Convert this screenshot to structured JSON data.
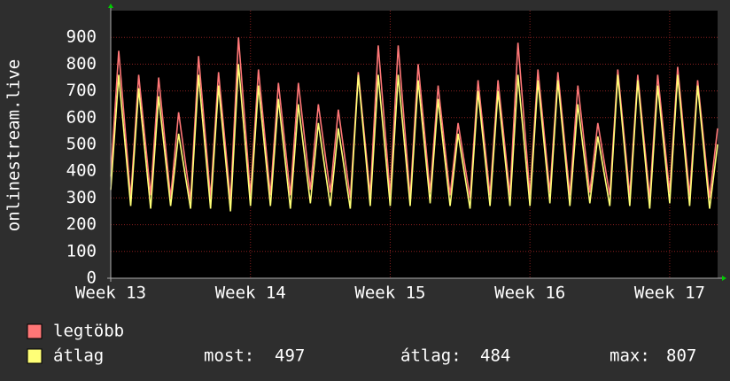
{
  "chart_data": {
    "type": "line",
    "y_label": "onlinestream.live",
    "x": [
      0,
      0.4,
      1,
      1.4,
      2,
      2.4,
      3,
      3.4,
      4,
      4.4,
      5,
      5.4,
      6,
      6.4,
      7,
      7.4,
      8,
      8.4,
      9,
      9.4,
      10,
      10.4,
      11,
      11.4,
      12,
      12.4,
      13,
      13.4,
      14,
      14.4,
      15,
      15.4,
      16,
      16.4,
      17,
      17.4,
      18,
      18.4,
      19,
      19.4,
      20,
      20.4,
      21,
      21.4,
      22,
      22.4,
      23,
      23.4,
      24,
      24.4,
      25,
      25.4,
      26,
      26.4,
      27,
      27.4,
      28,
      28.4,
      29,
      29.4,
      30,
      30.4
    ],
    "xlim": [
      0,
      30.4
    ],
    "xticks": [
      {
        "value": 0,
        "label": "Week 13"
      },
      {
        "value": 7,
        "label": "Week 14"
      },
      {
        "value": 14,
        "label": "Week 15"
      },
      {
        "value": 21,
        "label": "Week 16"
      },
      {
        "value": 28,
        "label": "Week 17"
      }
    ],
    "ylim": [
      0,
      1000
    ],
    "yticks": [
      0,
      100,
      200,
      300,
      400,
      500,
      600,
      700,
      800,
      900
    ],
    "grid": true,
    "series": [
      {
        "name": "legtöbb",
        "color": "#ff7777",
        "values": [
          380,
          850,
          300,
          760,
          310,
          750,
          300,
          620,
          290,
          830,
          300,
          770,
          290,
          900,
          310,
          780,
          310,
          730,
          310,
          730,
          330,
          650,
          320,
          630,
          300,
          770,
          310,
          870,
          310,
          870,
          300,
          800,
          320,
          720,
          310,
          580,
          300,
          740,
          310,
          740,
          310,
          880,
          310,
          780,
          320,
          770,
          310,
          720,
          320,
          580,
          310,
          780,
          310,
          760,
          300,
          760,
          320,
          790,
          310,
          740,
          300,
          560
        ]
      },
      {
        "name": "átlag",
        "color": "#ffff77",
        "values": [
          330,
          760,
          270,
          710,
          260,
          680,
          270,
          540,
          260,
          760,
          260,
          720,
          250,
          800,
          270,
          720,
          270,
          670,
          260,
          650,
          280,
          580,
          270,
          560,
          260,
          760,
          270,
          760,
          270,
          760,
          270,
          740,
          280,
          670,
          270,
          540,
          260,
          700,
          270,
          700,
          270,
          760,
          270,
          740,
          280,
          740,
          270,
          650,
          280,
          530,
          270,
          760,
          270,
          740,
          260,
          720,
          280,
          760,
          270,
          720,
          260,
          500
        ]
      }
    ],
    "stats": [
      {
        "label": "most:",
        "value": 497
      },
      {
        "label": "átlag:",
        "value": 484
      },
      {
        "label": "max:",
        "value": 807
      }
    ]
  }
}
